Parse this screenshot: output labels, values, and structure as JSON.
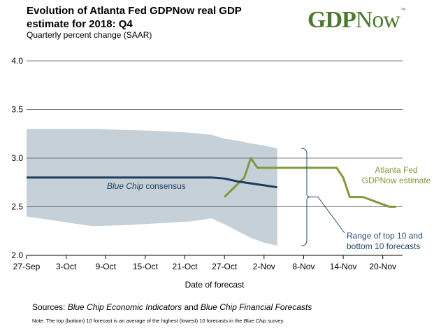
{
  "header": {
    "title": "Evolution of Atlanta Fed GDPNow real GDP estimate for 2018: Q4",
    "subtitle": "Quarterly percent change (SAAR)",
    "logo_main": "GDP",
    "logo_rest": "Now",
    "logo_tm": "™"
  },
  "footer": {
    "sources_prefix": "Sources:",
    "sources_italic1": "Blue Chip Economic Indicators",
    "sources_and": "and",
    "sources_italic2": "Blue Chip Financial Forecasts",
    "note_prefix": "Note:  The top (bottom) 10 forecast is an average of the highest (lowest) 10 forecasts in the",
    "note_italic": "Blue Chip",
    "note_suffix": "survey."
  },
  "colors": {
    "gdpnow": "#7f9a3c",
    "consensus": "#1f3d5c",
    "range_fill": "#c5d0d9",
    "range_label": "#2a4a70",
    "grid": "#555555",
    "logo": "#4e7a2e"
  },
  "chart_data": {
    "type": "line",
    "xlabel": "Date of forecast",
    "ylabel": "",
    "ylim": [
      2.0,
      4.0
    ],
    "yticks": [
      "2.0",
      "2.5",
      "3.0",
      "3.5",
      "4.0"
    ],
    "xticks": [
      "27-Sep",
      "3-Oct",
      "9-Oct",
      "15-Oct",
      "21-Oct",
      "27-Oct",
      "2-Nov",
      "8-Nov",
      "14-Nov",
      "20-Nov"
    ],
    "grid": true,
    "series": [
      {
        "name": "Atlanta Fed GDPNow estimate",
        "x": [
          30,
          33,
          34,
          35,
          37,
          38,
          39,
          42,
          47,
          48,
          49,
          51,
          53,
          55,
          56
        ],
        "y": [
          2.6,
          2.8,
          3.0,
          2.9,
          2.9,
          2.9,
          2.9,
          2.9,
          2.9,
          2.8,
          2.6,
          2.6,
          2.55,
          2.5,
          2.5
        ]
      },
      {
        "name": "Blue Chip consensus",
        "x": [
          0,
          5,
          10,
          15,
          20,
          25,
          28,
          30,
          32,
          34,
          36,
          38
        ],
        "y": [
          2.8,
          2.8,
          2.8,
          2.8,
          2.8,
          2.8,
          2.8,
          2.79,
          2.76,
          2.74,
          2.72,
          2.7
        ]
      }
    ],
    "range": {
      "name": "Range of top 10 and bottom 10 forecasts",
      "x": [
        0,
        5,
        10,
        15,
        20,
        25,
        28,
        30,
        32,
        34,
        36,
        38
      ],
      "top": [
        3.3,
        3.3,
        3.3,
        3.29,
        3.28,
        3.26,
        3.24,
        3.2,
        3.18,
        3.15,
        3.13,
        3.1
      ],
      "bottom": [
        2.4,
        2.35,
        2.3,
        2.31,
        2.33,
        2.35,
        2.38,
        2.32,
        2.25,
        2.18,
        2.13,
        2.1
      ]
    },
    "annotations": {
      "consensus_label_italic": "Blue Chip",
      "consensus_label_rest": " consensus",
      "gdpnow_label_line1": "Atlanta Fed",
      "gdpnow_label_line2": "GDPNow estimate",
      "range_label_line1": "Range of top 10 and",
      "range_label_line2": "bottom 10 forecasts"
    }
  }
}
